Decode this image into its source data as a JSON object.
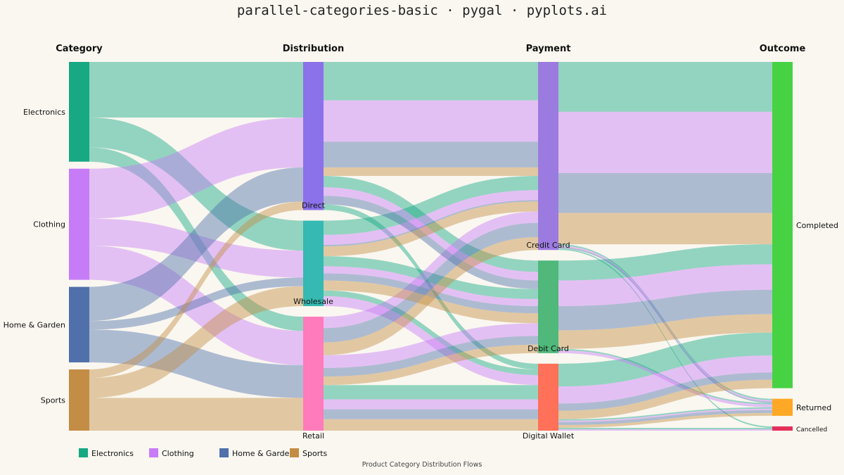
{
  "title": "parallel-categories-basic · pygal · pyplots.ai",
  "caption": "Product Category Distribution Flows",
  "colors": {
    "Electronics": "#17a884",
    "Clothing": "#c77cf7",
    "Home & Garden": "#4f70aa",
    "Sports": "#c48d45",
    "Direct": "#8b71ea",
    "Wholesale": "#35b9b2",
    "Retail": "#ff7bbb",
    "Credit Card": "#9c7be0",
    "Debit Card": "#4fb87a",
    "Digital Wallet": "#ff7158",
    "Completed": "#47d244",
    "Returned": "#ffa826",
    "Cancelled": "#e5305a"
  },
  "legend": [
    {
      "label": "Electronics",
      "color": "#17a884"
    },
    {
      "label": "Clothing",
      "color": "#c77cf7"
    },
    {
      "label": "Home & Garden",
      "color": "#4f70aa"
    },
    {
      "label": "Sports",
      "color": "#c48d45"
    }
  ],
  "chart_data": {
    "type": "parallel-categories",
    "dimensions": [
      {
        "name": "Category",
        "categories": [
          "Electronics",
          "Clothing",
          "Home & Garden",
          "Sports"
        ]
      },
      {
        "name": "Distribution",
        "categories": [
          "Direct",
          "Wholesale",
          "Retail"
        ]
      },
      {
        "name": "Payment",
        "categories": [
          "Credit Card",
          "Debit Card",
          "Digital Wallet"
        ]
      },
      {
        "name": "Outcome",
        "categories": [
          "Completed",
          "Returned",
          "Cancelled"
        ]
      }
    ],
    "color_by": "Category",
    "records": [
      {
        "path": [
          "Electronics",
          "Direct",
          "Credit Card",
          "Completed"
        ],
        "count": 27
      },
      {
        "path": [
          "Electronics",
          "Direct",
          "Debit Card",
          "Completed"
        ],
        "count": 7
      },
      {
        "path": [
          "Electronics",
          "Direct",
          "Digital Wallet",
          "Completed"
        ],
        "count": 4
      },
      {
        "path": [
          "Electronics",
          "Direct",
          "Debit Card",
          "Returned"
        ],
        "count": 1
      },
      {
        "path": [
          "Electronics",
          "Wholesale",
          "Credit Card",
          "Completed"
        ],
        "count": 8
      },
      {
        "path": [
          "Electronics",
          "Wholesale",
          "Debit Card",
          "Completed"
        ],
        "count": 7
      },
      {
        "path": [
          "Electronics",
          "Wholesale",
          "Digital Wallet",
          "Completed"
        ],
        "count": 4
      },
      {
        "path": [
          "Electronics",
          "Wholesale",
          "Credit Card",
          "Returned"
        ],
        "count": 1
      },
      {
        "path": [
          "Electronics",
          "Wholesale",
          "Credit Card",
          "Cancelled"
        ],
        "count": 1
      },
      {
        "path": [
          "Electronics",
          "Retail",
          "Digital Wallet",
          "Completed"
        ],
        "count": 8
      },
      {
        "path": [
          "Electronics",
          "Retail",
          "Digital Wallet",
          "Returned"
        ],
        "count": 1
      },
      {
        "path": [
          "Electronics",
          "Retail",
          "Digital Wallet",
          "Cancelled"
        ],
        "count": 1
      },
      {
        "path": [
          "Clothing",
          "Direct",
          "Credit Card",
          "Completed"
        ],
        "count": 28
      },
      {
        "path": [
          "Clothing",
          "Direct",
          "Debit Card",
          "Completed"
        ],
        "count": 6
      },
      {
        "path": [
          "Clothing",
          "Direct",
          "Credit Card",
          "Returned"
        ],
        "count": 1
      },
      {
        "path": [
          "Clothing",
          "Wholesale",
          "Credit Card",
          "Completed"
        ],
        "count": 7
      },
      {
        "path": [
          "Clothing",
          "Wholesale",
          "Debit Card",
          "Completed"
        ],
        "count": 5
      },
      {
        "path": [
          "Clothing",
          "Wholesale",
          "Digital Wallet",
          "Completed"
        ],
        "count": 6
      },
      {
        "path": [
          "Clothing",
          "Wholesale",
          "Digital Wallet",
          "Returned"
        ],
        "count": 1
      },
      {
        "path": [
          "Clothing",
          "Retail",
          "Credit Card",
          "Completed"
        ],
        "count": 8
      },
      {
        "path": [
          "Clothing",
          "Retail",
          "Debit Card",
          "Completed"
        ],
        "count": 7
      },
      {
        "path": [
          "Clothing",
          "Retail",
          "Digital Wallet",
          "Completed"
        ],
        "count": 6
      },
      {
        "path": [
          "Clothing",
          "Retail",
          "Debit Card",
          "Returned"
        ],
        "count": 2
      },
      {
        "path": [
          "Clothing",
          "Retail",
          "Digital Wallet",
          "Cancelled"
        ],
        "count": 1
      },
      {
        "path": [
          "Home & Garden",
          "Direct",
          "Credit Card",
          "Completed"
        ],
        "count": 18
      },
      {
        "path": [
          "Home & Garden",
          "Direct",
          "Debit Card",
          "Completed"
        ],
        "count": 6
      },
      {
        "path": [
          "Home & Garden",
          "Wholesale",
          "Debit Card",
          "Completed"
        ],
        "count": 5
      },
      {
        "path": [
          "Home & Garden",
          "Wholesale",
          "Credit Card",
          "Returned"
        ],
        "count": 1
      },
      {
        "path": [
          "Home & Garden",
          "Retail",
          "Credit Card",
          "Completed"
        ],
        "count": 10
      },
      {
        "path": [
          "Home & Garden",
          "Retail",
          "Debit Card",
          "Completed"
        ],
        "count": 6
      },
      {
        "path": [
          "Home & Garden",
          "Retail",
          "Digital Wallet",
          "Completed"
        ],
        "count": 5
      },
      {
        "path": [
          "Home & Garden",
          "Retail",
          "Digital Wallet",
          "Returned"
        ],
        "count": 2
      },
      {
        "path": [
          "Sports",
          "Direct",
          "Credit Card",
          "Completed"
        ],
        "count": 6
      },
      {
        "path": [
          "Sports",
          "Wholesale",
          "Credit Card",
          "Completed"
        ],
        "count": 7
      },
      {
        "path": [
          "Sports",
          "Wholesale",
          "Debit Card",
          "Completed"
        ],
        "count": 7
      },
      {
        "path": [
          "Sports",
          "Retail",
          "Credit Card",
          "Completed"
        ],
        "count": 9
      },
      {
        "path": [
          "Sports",
          "Retail",
          "Debit Card",
          "Completed"
        ],
        "count": 6
      },
      {
        "path": [
          "Sports",
          "Retail",
          "Digital Wallet",
          "Completed"
        ],
        "count": 6
      },
      {
        "path": [
          "Sports",
          "Retail",
          "Digital Wallet",
          "Returned"
        ],
        "count": 2
      }
    ]
  }
}
